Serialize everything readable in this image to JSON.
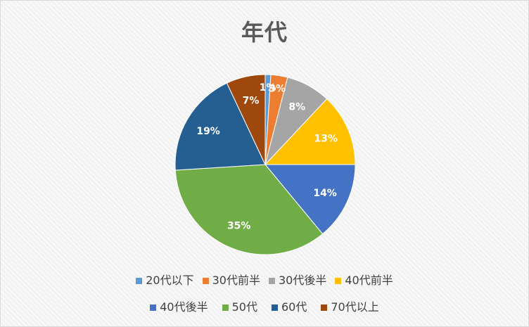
{
  "chart_data": {
    "type": "pie",
    "title": "年代",
    "categories": [
      "20代以下",
      "30代前半",
      "30代後半",
      "40代前半",
      "40代後半",
      "50代",
      "60代",
      "70代以上"
    ],
    "values": [
      1,
      3,
      8,
      13,
      14,
      35,
      19,
      7
    ],
    "data_labels": [
      "1%",
      "3%",
      "8%",
      "13%",
      "14%",
      "35%",
      "19%",
      "7%"
    ],
    "colors": [
      "#5B9BD5",
      "#ED7D31",
      "#A5A5A5",
      "#FFC000",
      "#4472C4",
      "#70AD47",
      "#255E91",
      "#9E480E"
    ],
    "legend_position": "bottom",
    "start_angle": "top, clockwise"
  }
}
